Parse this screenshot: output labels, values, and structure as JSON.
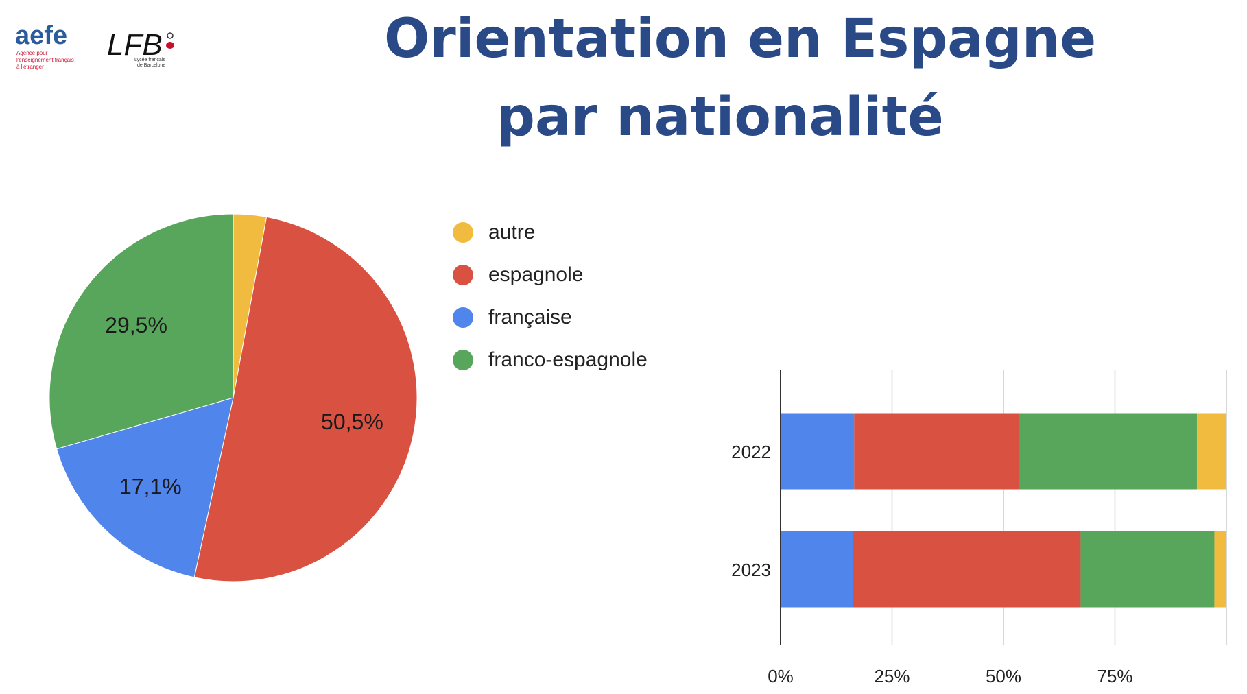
{
  "logos": {
    "aefe": {
      "name": "aefe",
      "tagline": [
        "Agence pour",
        "l'enseignement français",
        "à l'étranger"
      ]
    },
    "lfb": {
      "name": "LFB",
      "tagline": [
        "Lycée français",
        "de Barcelone"
      ]
    }
  },
  "title": {
    "line1": "Orientation en Espagne",
    "line2": "par nationalité"
  },
  "legend": [
    {
      "label": "autre",
      "color": "#f1bb3f"
    },
    {
      "label": "espagnole",
      "color": "#d95140"
    },
    {
      "label": "française",
      "color": "#5085ec"
    },
    {
      "label": "franco-espagnole",
      "color": "#58a55c"
    }
  ],
  "chart_data": [
    {
      "type": "pie",
      "slices": [
        {
          "label": "autre",
          "value": 2.9,
          "color": "#f1bb3f",
          "data_label": ""
        },
        {
          "label": "espagnole",
          "value": 50.5,
          "color": "#d95140",
          "data_label": "50,5%"
        },
        {
          "label": "française",
          "value": 17.1,
          "color": "#5085ec",
          "data_label": "17,1%"
        },
        {
          "label": "franco-espagnole",
          "value": 29.5,
          "color": "#58a55c",
          "data_label": "29,5%"
        }
      ]
    },
    {
      "type": "bar",
      "orientation": "horizontal",
      "stacked": "percent",
      "categories": [
        "2022",
        "2023"
      ],
      "series": [
        {
          "name": "française",
          "color": "#5085ec",
          "values": [
            16.5,
            16.3
          ]
        },
        {
          "name": "espagnole",
          "color": "#d95140",
          "values": [
            37.0,
            51.0
          ]
        },
        {
          "name": "franco-espagnole",
          "color": "#58a55c",
          "values": [
            39.9,
            30.0
          ]
        },
        {
          "name": "autre",
          "color": "#f1bb3f",
          "values": [
            6.6,
            2.7
          ]
        }
      ],
      "xlim": [
        0,
        100
      ],
      "x_ticks": [
        "0%",
        "25%",
        "50%",
        "75%"
      ],
      "grid": true
    }
  ]
}
